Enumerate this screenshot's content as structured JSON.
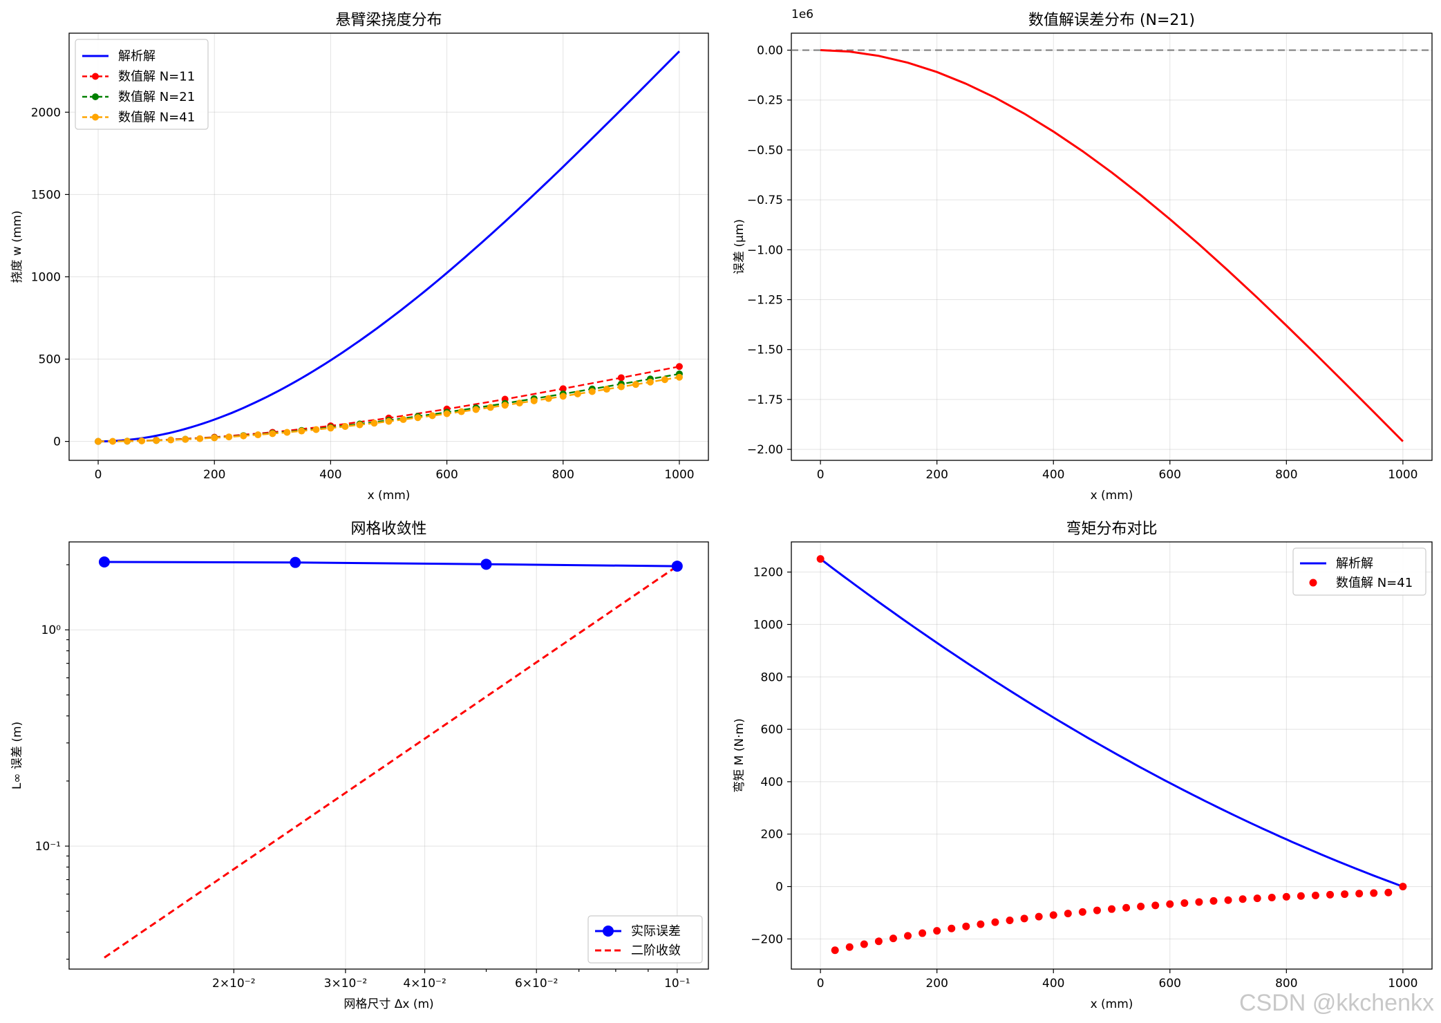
{
  "colors": {
    "analytic": "#0000ff",
    "n11": "#ff0000",
    "n21": "#008000",
    "n41": "#ffa500",
    "error": "#ff0000",
    "zero_line": "#808080",
    "actual": "#0000ff",
    "second_order": "#ff0000",
    "moment_num": "#ff0000"
  },
  "watermark": "CSDN @kkchenkx",
  "chart_data": [
    {
      "id": "deflection",
      "type": "line",
      "title": "悬臂梁挠度分布",
      "xlabel": "x (mm)",
      "ylabel": "挠度 w (mm)",
      "xlim": [
        -50,
        1050
      ],
      "ylim": [
        -115,
        2480
      ],
      "xticks": [
        0,
        200,
        400,
        600,
        800,
        1000
      ],
      "xtick_labels": [
        "0",
        "200",
        "400",
        "600",
        "800",
        "1000"
      ],
      "yticks": [
        0,
        500,
        1000,
        1500,
        2000
      ],
      "ytick_labels": [
        "0",
        "500",
        "1000",
        "1500",
        "2000"
      ],
      "legend_position": "top-left",
      "series": [
        {
          "name": "解析解",
          "style": "solid",
          "color_key": "analytic",
          "formula": "analytic_cubic",
          "w_end": 2370,
          "samples": 101
        },
        {
          "name": "数值解 N=11",
          "style": "dashed-dot",
          "color_key": "n11",
          "formula": "numeric_cubic",
          "w_end": 455,
          "nodes": 11
        },
        {
          "name": "数值解 N=21",
          "style": "dashed-dot",
          "color_key": "n21",
          "formula": "numeric_cubic",
          "w_end": 410,
          "nodes": 21
        },
        {
          "name": "数值解 N=41",
          "style": "dashed-dot",
          "color_key": "n41",
          "formula": "numeric_cubic",
          "w_end": 390,
          "nodes": 41
        }
      ]
    },
    {
      "id": "error",
      "type": "line",
      "title": "数值解误差分布 (N=21)",
      "xlabel": "x (mm)",
      "ylabel": "误差 (μm)",
      "offset_label": "1e6",
      "xlim": [
        -50,
        1050
      ],
      "ylim": [
        -2.055,
        0.085
      ],
      "xticks": [
        0,
        200,
        400,
        600,
        800,
        1000
      ],
      "xtick_labels": [
        "0",
        "200",
        "400",
        "600",
        "800",
        "1000"
      ],
      "yticks": [
        0,
        -0.25,
        -0.5,
        -0.75,
        -1.0,
        -1.25,
        -1.5,
        -1.75,
        -2.0
      ],
      "ytick_labels": [
        "0.00",
        "−0.25",
        "−0.50",
        "−0.75",
        "−1.00",
        "−1.25",
        "−1.50",
        "−1.75",
        "−2.00"
      ],
      "series": [
        {
          "name": "误差",
          "style": "solid",
          "color_key": "error",
          "formula": "error_curve",
          "end_value": -1.96,
          "samples": 21
        },
        {
          "name": "零线",
          "style": "dashed",
          "color_key": "zero_line",
          "value": 0
        }
      ]
    },
    {
      "id": "convergence",
      "type": "line",
      "scale": "log-log",
      "title": "网格收敛性",
      "xlabel": "网格尺寸 Δx (m)",
      "ylabel": "L∞ 误差 (m)",
      "xlim": [
        0.011,
        0.112
      ],
      "ylim": [
        0.027,
        2.55
      ],
      "xticks": [
        0.02,
        0.03,
        0.04,
        0.06,
        0.1
      ],
      "xtick_labels": [
        "2×10⁻²",
        "3×10⁻²",
        "4×10⁻²",
        "6×10⁻²",
        "10⁻¹"
      ],
      "yticks": [
        1.0,
        0.1
      ],
      "ytick_labels": [
        "10⁰",
        "10⁻¹"
      ],
      "legend_position": "bottom-right",
      "series": [
        {
          "name": "实际误差",
          "style": "solid-marker",
          "color_key": "actual",
          "x": [
            0.0125,
            0.025,
            0.05,
            0.1
          ],
          "y": [
            2.06,
            2.05,
            2.01,
            1.97
          ]
        },
        {
          "name": "二阶收敛",
          "style": "dashed",
          "color_key": "second_order",
          "x": [
            0.0125,
            0.1
          ],
          "y": [
            0.0305,
            1.97
          ]
        }
      ]
    },
    {
      "id": "moment",
      "type": "line",
      "title": "弯矩分布对比",
      "xlabel": "x (mm)",
      "ylabel": "弯矩 M (N·m)",
      "xlim": [
        -50,
        1050
      ],
      "ylim": [
        -315,
        1315
      ],
      "xticks": [
        0,
        200,
        400,
        600,
        800,
        1000
      ],
      "xtick_labels": [
        "0",
        "200",
        "400",
        "600",
        "800",
        "1000"
      ],
      "yticks": [
        -200,
        0,
        200,
        400,
        600,
        800,
        1000,
        1200
      ],
      "ytick_labels": [
        "−200",
        "0",
        "200",
        "400",
        "600",
        "800",
        "1000",
        "1200"
      ],
      "legend_position": "top-right",
      "series": [
        {
          "name": "解析解",
          "style": "solid",
          "color_key": "analytic",
          "formula": "moment_curve",
          "start": 1250,
          "samples": 101
        },
        {
          "name": "数值解 N=41",
          "style": "scatter",
          "color_key": "moment_num",
          "x": [
            0,
            25,
            50,
            75,
            100,
            125,
            150,
            175,
            200,
            225,
            250,
            275,
            300,
            325,
            350,
            375,
            400,
            425,
            450,
            475,
            500,
            525,
            550,
            575,
            600,
            625,
            650,
            675,
            700,
            725,
            750,
            775,
            800,
            825,
            850,
            875,
            900,
            925,
            950,
            975,
            1000
          ],
          "y": [
            1250,
            -243,
            -231,
            -220,
            -209,
            -198,
            -188,
            -178,
            -169,
            -160,
            -152,
            -144,
            -136,
            -129,
            -122,
            -115,
            -109,
            -103,
            -97,
            -91,
            -86,
            -81,
            -76,
            -72,
            -67,
            -63,
            -59,
            -55,
            -52,
            -48,
            -45,
            -42,
            -39,
            -36,
            -34,
            -31,
            -29,
            -27,
            -25,
            -23,
            0
          ]
        }
      ]
    }
  ]
}
